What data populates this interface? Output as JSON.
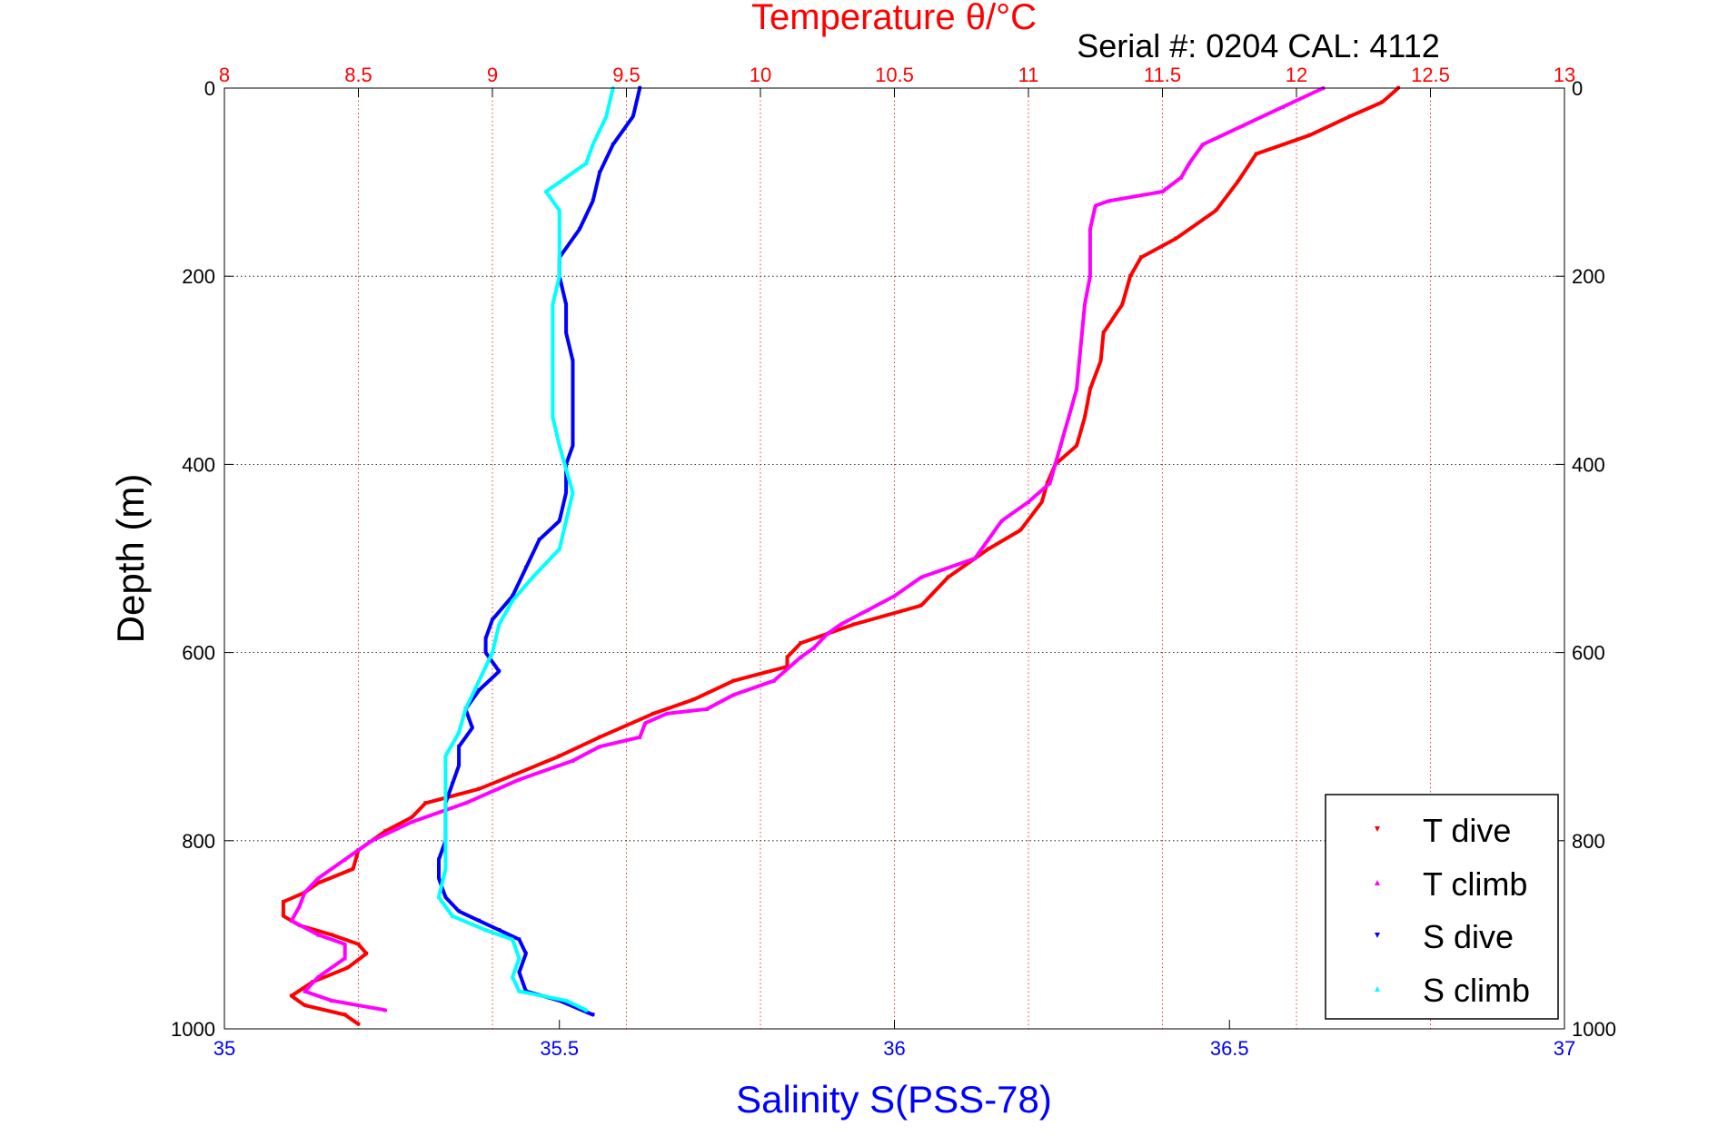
{
  "chart_data": {
    "type": "scatter",
    "title": "Temperature θ/°C",
    "subtitle": "Serial #: 0204  CAL: 4112",
    "ylabel": "Depth (m)",
    "xlabel": "Salinity S(PSS-78)",
    "top_axis_label": "Temperature θ/°C",
    "ylim": [
      0,
      1000
    ],
    "y_reversed": true,
    "y_ticks": [
      "0",
      "200",
      "400",
      "600",
      "800",
      "1000"
    ],
    "temperature_axis": {
      "lim": [
        8,
        13
      ],
      "ticks": [
        "8",
        "8.5",
        "9",
        "9.5",
        "10",
        "10.5",
        "11",
        "11.5",
        "12",
        "12.5",
        "13"
      ],
      "position": "top",
      "color": "#ff0000"
    },
    "salinity_axis": {
      "lim": [
        35,
        37
      ],
      "ticks": [
        "35",
        "35.5",
        "36",
        "36.5",
        "37"
      ],
      "position": "bottom",
      "color": "#0000ff"
    },
    "grid": true,
    "legend_position": "bottom-right",
    "series": [
      {
        "name": "T dive",
        "axis": "temperature",
        "color": "#ff0000",
        "marker": "triangle-down",
        "points": [
          [
            12.38,
            0
          ],
          [
            12.32,
            15
          ],
          [
            12.2,
            30
          ],
          [
            12.05,
            50
          ],
          [
            11.85,
            70
          ],
          [
            11.78,
            100
          ],
          [
            11.7,
            130
          ],
          [
            11.55,
            160
          ],
          [
            11.42,
            180
          ],
          [
            11.38,
            200
          ],
          [
            11.35,
            230
          ],
          [
            11.28,
            260
          ],
          [
            11.27,
            290
          ],
          [
            11.23,
            320
          ],
          [
            11.21,
            350
          ],
          [
            11.18,
            380
          ],
          [
            11.1,
            400
          ],
          [
            11.07,
            420
          ],
          [
            11.05,
            440
          ],
          [
            10.97,
            470
          ],
          [
            10.85,
            490
          ],
          [
            10.7,
            520
          ],
          [
            10.6,
            550
          ],
          [
            10.35,
            570
          ],
          [
            10.15,
            590
          ],
          [
            10.1,
            605
          ],
          [
            10.1,
            615
          ],
          [
            9.9,
            630
          ],
          [
            9.75,
            650
          ],
          [
            9.6,
            665
          ],
          [
            9.4,
            690
          ],
          [
            9.25,
            710
          ],
          [
            9.08,
            730
          ],
          [
            8.95,
            745
          ],
          [
            8.75,
            760
          ],
          [
            8.7,
            775
          ],
          [
            8.6,
            790
          ],
          [
            8.5,
            810
          ],
          [
            8.48,
            830
          ],
          [
            8.35,
            845
          ],
          [
            8.3,
            855
          ],
          [
            8.22,
            865
          ],
          [
            8.22,
            880
          ],
          [
            8.28,
            890
          ],
          [
            8.4,
            900
          ],
          [
            8.5,
            910
          ],
          [
            8.53,
            920
          ],
          [
            8.46,
            935
          ],
          [
            8.33,
            950
          ],
          [
            8.25,
            965
          ],
          [
            8.3,
            975
          ],
          [
            8.45,
            985
          ],
          [
            8.5,
            995
          ]
        ]
      },
      {
        "name": "T climb",
        "axis": "temperature",
        "color": "#ff00ff",
        "marker": "triangle-up",
        "points": [
          [
            12.1,
            0
          ],
          [
            11.95,
            20
          ],
          [
            11.8,
            40
          ],
          [
            11.65,
            60
          ],
          [
            11.6,
            80
          ],
          [
            11.57,
            95
          ],
          [
            11.5,
            110
          ],
          [
            11.3,
            120
          ],
          [
            11.25,
            125
          ],
          [
            11.23,
            150
          ],
          [
            11.23,
            200
          ],
          [
            11.21,
            230
          ],
          [
            11.2,
            260
          ],
          [
            11.19,
            290
          ],
          [
            11.18,
            320
          ],
          [
            11.15,
            350
          ],
          [
            11.12,
            380
          ],
          [
            11.1,
            400
          ],
          [
            11.08,
            420
          ],
          [
            11.0,
            440
          ],
          [
            10.9,
            460
          ],
          [
            10.85,
            480
          ],
          [
            10.8,
            500
          ],
          [
            10.6,
            520
          ],
          [
            10.5,
            540
          ],
          [
            10.4,
            555
          ],
          [
            10.3,
            570
          ],
          [
            10.25,
            580
          ],
          [
            10.2,
            595
          ],
          [
            10.15,
            605
          ],
          [
            10.05,
            630
          ],
          [
            9.9,
            645
          ],
          [
            9.8,
            660
          ],
          [
            9.65,
            665
          ],
          [
            9.57,
            675
          ],
          [
            9.55,
            690
          ],
          [
            9.4,
            700
          ],
          [
            9.3,
            715
          ],
          [
            9.1,
            735
          ],
          [
            8.9,
            760
          ],
          [
            8.7,
            780
          ],
          [
            8.55,
            800
          ],
          [
            8.45,
            820
          ],
          [
            8.35,
            840
          ],
          [
            8.3,
            855
          ],
          [
            8.28,
            870
          ],
          [
            8.25,
            885
          ],
          [
            8.35,
            900
          ],
          [
            8.45,
            910
          ],
          [
            8.45,
            925
          ],
          [
            8.35,
            945
          ],
          [
            8.3,
            960
          ],
          [
            8.4,
            970
          ],
          [
            8.6,
            980
          ]
        ]
      },
      {
        "name": "S dive",
        "axis": "salinity",
        "color": "#0000ff",
        "marker": "triangle-down",
        "points": [
          [
            35.62,
            0
          ],
          [
            35.61,
            30
          ],
          [
            35.58,
            60
          ],
          [
            35.56,
            90
          ],
          [
            35.55,
            120
          ],
          [
            35.53,
            150
          ],
          [
            35.5,
            180
          ],
          [
            35.5,
            200
          ],
          [
            35.51,
            230
          ],
          [
            35.51,
            260
          ],
          [
            35.52,
            290
          ],
          [
            35.52,
            320
          ],
          [
            35.52,
            350
          ],
          [
            35.52,
            380
          ],
          [
            35.51,
            400
          ],
          [
            35.51,
            430
          ],
          [
            35.5,
            460
          ],
          [
            35.47,
            480
          ],
          [
            35.45,
            510
          ],
          [
            35.43,
            540
          ],
          [
            35.4,
            565
          ],
          [
            35.39,
            585
          ],
          [
            35.39,
            600
          ],
          [
            35.41,
            620
          ],
          [
            35.38,
            640
          ],
          [
            35.36,
            660
          ],
          [
            35.37,
            680
          ],
          [
            35.35,
            700
          ],
          [
            35.35,
            720
          ],
          [
            35.34,
            740
          ],
          [
            35.33,
            760
          ],
          [
            35.33,
            780
          ],
          [
            35.33,
            800
          ],
          [
            35.32,
            820
          ],
          [
            35.32,
            840
          ],
          [
            35.33,
            860
          ],
          [
            35.35,
            875
          ],
          [
            35.38,
            885
          ],
          [
            35.41,
            895
          ],
          [
            35.44,
            905
          ],
          [
            35.45,
            920
          ],
          [
            35.44,
            940
          ],
          [
            35.45,
            960
          ],
          [
            35.5,
            970
          ],
          [
            35.55,
            985
          ]
        ]
      },
      {
        "name": "S climb",
        "axis": "salinity",
        "color": "#00ffff",
        "marker": "triangle-up",
        "points": [
          [
            35.58,
            0
          ],
          [
            35.57,
            30
          ],
          [
            35.55,
            60
          ],
          [
            35.54,
            80
          ],
          [
            35.5,
            100
          ],
          [
            35.48,
            110
          ],
          [
            35.5,
            130
          ],
          [
            35.5,
            200
          ],
          [
            35.49,
            230
          ],
          [
            35.49,
            260
          ],
          [
            35.49,
            290
          ],
          [
            35.49,
            320
          ],
          [
            35.49,
            350
          ],
          [
            35.5,
            380
          ],
          [
            35.51,
            405
          ],
          [
            35.52,
            430
          ],
          [
            35.51,
            460
          ],
          [
            35.5,
            490
          ],
          [
            35.46,
            520
          ],
          [
            35.43,
            545
          ],
          [
            35.41,
            570
          ],
          [
            35.4,
            600
          ],
          [
            35.38,
            630
          ],
          [
            35.36,
            660
          ],
          [
            35.35,
            685
          ],
          [
            35.33,
            710
          ],
          [
            35.33,
            740
          ],
          [
            35.33,
            770
          ],
          [
            35.33,
            800
          ],
          [
            35.33,
            830
          ],
          [
            35.32,
            860
          ],
          [
            35.34,
            880
          ],
          [
            35.39,
            895
          ],
          [
            35.43,
            905
          ],
          [
            35.44,
            925
          ],
          [
            35.43,
            945
          ],
          [
            35.44,
            960
          ],
          [
            35.51,
            970
          ],
          [
            35.54,
            980
          ]
        ]
      }
    ]
  }
}
